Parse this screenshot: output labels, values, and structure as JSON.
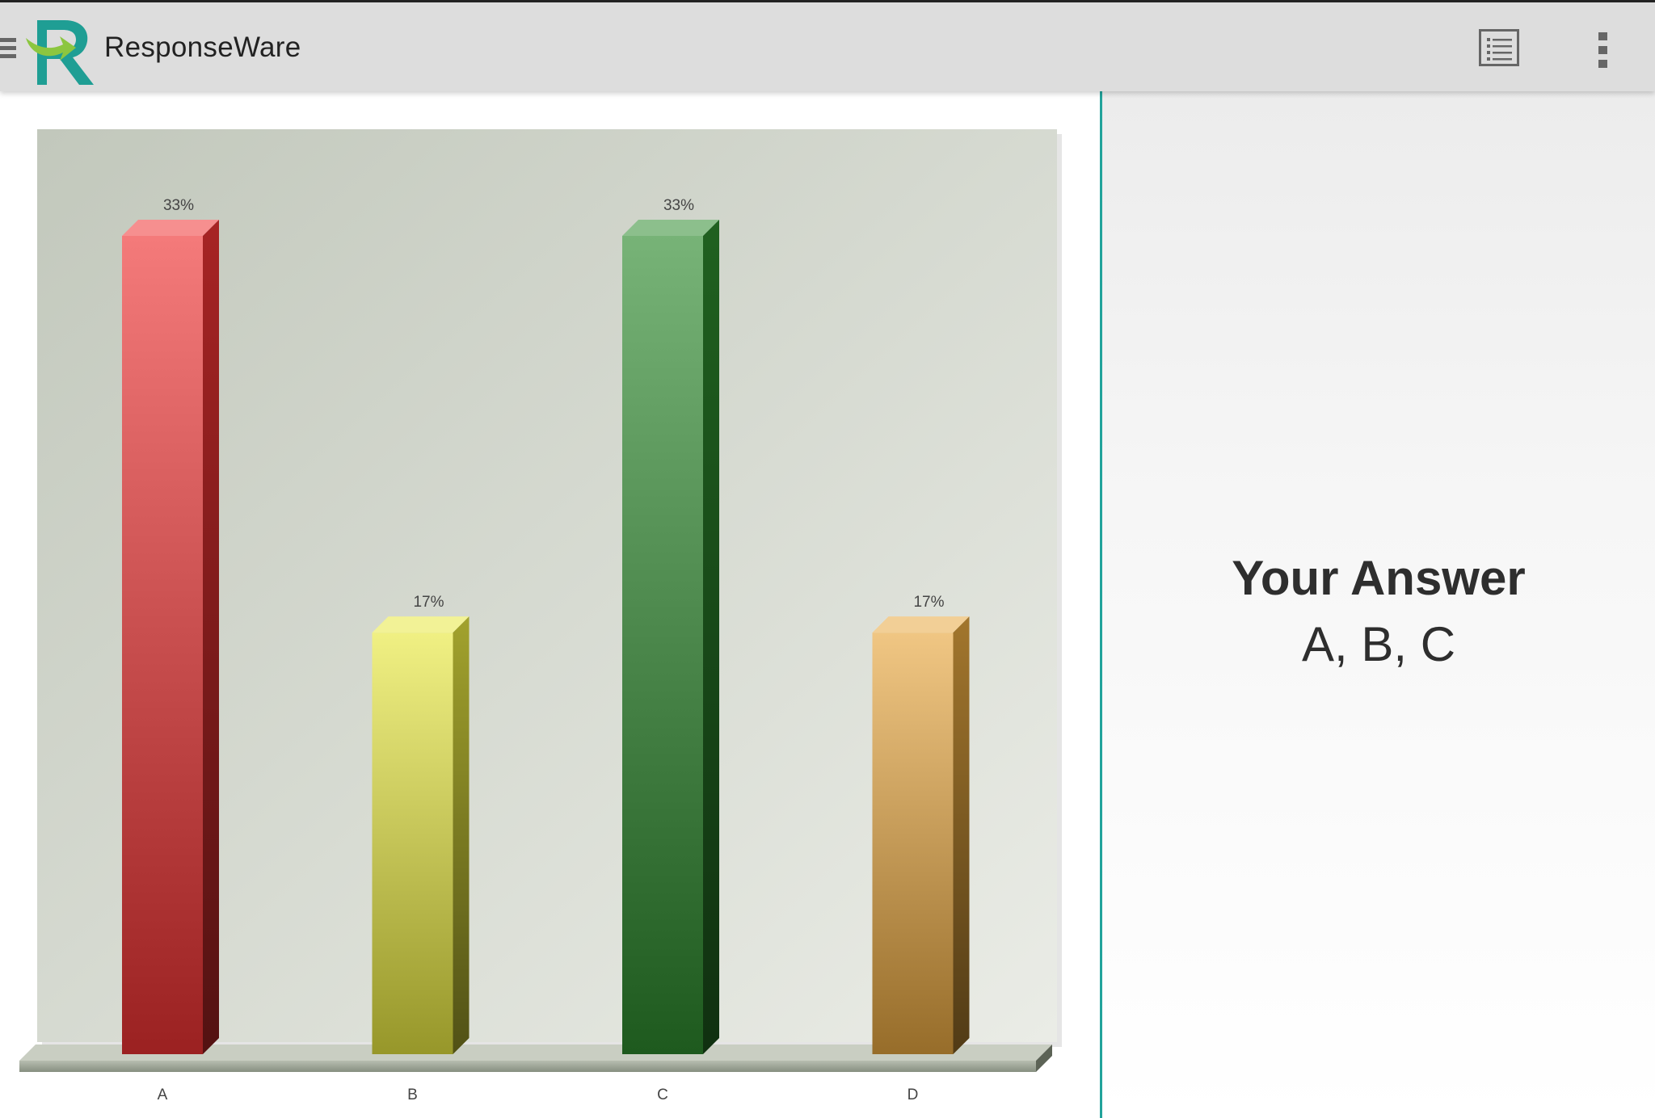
{
  "app": {
    "title": "ResponseWare"
  },
  "toolbar": {
    "menu_icon": "hamburger-menu-icon",
    "list_icon": "question-list-icon",
    "more_icon": "more-vertical-icon"
  },
  "answer": {
    "heading": "Your Answer",
    "value": "A, B, C"
  },
  "colors": {
    "accent": "#22a39b",
    "toolbar_bg": "#dddddd"
  },
  "chart_data": {
    "type": "bar",
    "categories": [
      "A",
      "B",
      "C",
      "D"
    ],
    "values": [
      33,
      17,
      33,
      17
    ],
    "value_labels": [
      "33%",
      "17%",
      "33%",
      "17%"
    ],
    "colors": [
      "#ee3333",
      "#e8e840",
      "#2e8a2e",
      "#e8a840"
    ],
    "title": "",
    "xlabel": "",
    "ylabel": "",
    "ylim": [
      0,
      33
    ],
    "grid": false,
    "legend": "none"
  }
}
